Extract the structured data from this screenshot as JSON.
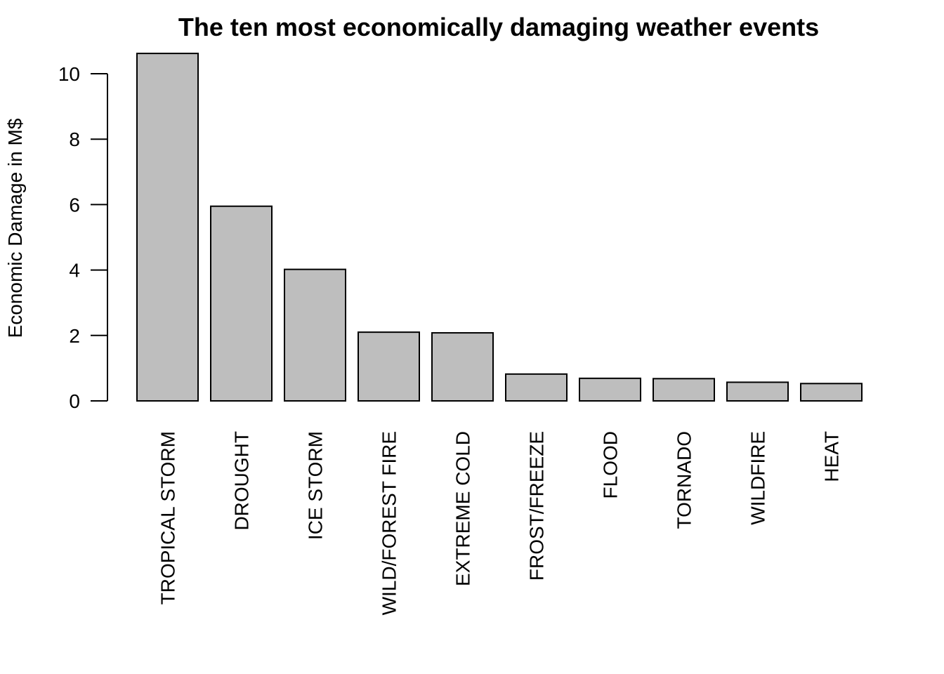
{
  "chart_data": {
    "type": "bar",
    "title": "The ten most economically damaging weather events",
    "xlabel": "",
    "ylabel": "Economic Damage in M$",
    "categories": [
      "TROPICAL STORM",
      "DROUGHT",
      "ICE STORM",
      "WILD/FOREST FIRE",
      "EXTREME COLD",
      "FROST/FREEZE",
      "FLOOD",
      "TORNADO",
      "WILDFIRE",
      "HEAT"
    ],
    "values": [
      10.62,
      5.95,
      4.02,
      2.1,
      2.08,
      0.82,
      0.69,
      0.68,
      0.57,
      0.53
    ],
    "yticks": [
      0,
      2,
      4,
      6,
      8,
      10
    ],
    "ylim": [
      0,
      10.62
    ],
    "bar_color": "#bebebe",
    "bar_stroke": "#000000",
    "grid": false,
    "legend": "none"
  }
}
